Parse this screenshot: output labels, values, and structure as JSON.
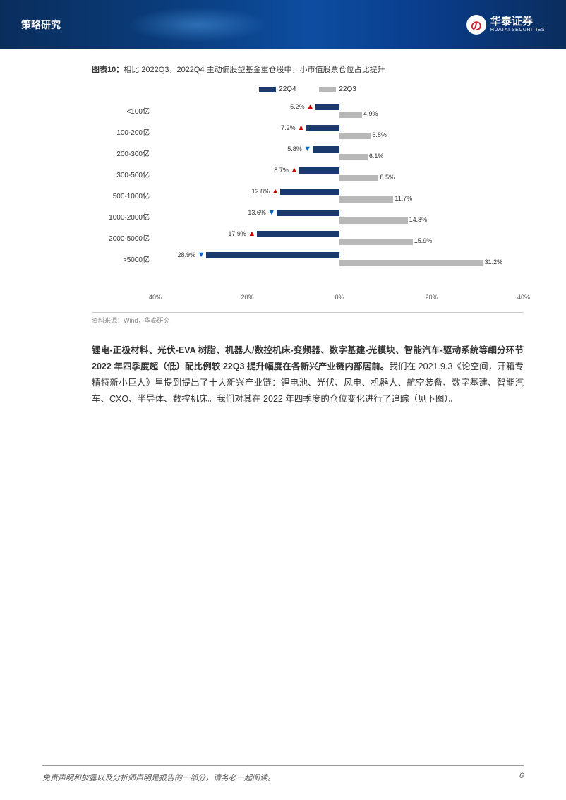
{
  "header": {
    "left": "策略研究",
    "logo_cn": "华泰证券",
    "logo_en": "HUATAI SECURITIES",
    "logo_mark": "の"
  },
  "chart": {
    "title_prefix": "图表10：",
    "title": "相比 2022Q3，2022Q4 主动偏股型基金重仓股中，小市值股票仓位占比提升",
    "legend_q4": "22Q4",
    "legend_q3": "22Q3",
    "color_q4": "#1a3a6e",
    "color_q3": "#b8b8b8",
    "color_up": "#cc0000",
    "color_down": "#0066cc",
    "max_pct": 40,
    "rows": [
      {
        "label": "<100亿",
        "q4": 5.2,
        "q3": 4.9,
        "dir": "up"
      },
      {
        "label": "100-200亿",
        "q4": 7.2,
        "q3": 6.8,
        "dir": "up"
      },
      {
        "label": "200-300亿",
        "q4": 5.8,
        "q3": 6.1,
        "dir": "down"
      },
      {
        "label": "300-500亿",
        "q4": 8.7,
        "q3": 8.5,
        "dir": "up"
      },
      {
        "label": "500-1000亿",
        "q4": 12.8,
        "q3": 11.7,
        "dir": "up"
      },
      {
        "label": "1000-2000亿",
        "q4": 13.6,
        "q3": 14.8,
        "dir": "down"
      },
      {
        "label": "2000-5000亿",
        "q4": 17.9,
        "q3": 15.9,
        "dir": "up"
      },
      {
        "label": ">5000亿",
        "q4": 28.9,
        "q3": 31.2,
        "dir": "down"
      }
    ],
    "axis_ticks": [
      "40%",
      "20%",
      "0%",
      "20%",
      "40%"
    ],
    "source": "资料来源：Wind，华泰研究"
  },
  "paragraph": {
    "bold": "锂电-正极材料、光伏-EVA 树脂、机器人/数控机床-变频器、数字基建-光模块、智能汽车-驱动系统等细分环节 2022 年四季度超（低）配比例较 22Q3 提升幅度在各新兴产业链内部居前。",
    "rest": "我们在 2021.9.3《论空间，开箱专精特新小巨人》里提到提出了十大新兴产业链：锂电池、光伏、风电、机器人、航空装备、数字基建、智能汽车、CXO、半导体、数控机床。我们对其在 2022 年四季度的仓位变化进行了追踪（见下图）。"
  },
  "footer": {
    "left": "免责声明和披露以及分析师声明是报告的一部分，请务必一起阅读。",
    "page": "6"
  }
}
